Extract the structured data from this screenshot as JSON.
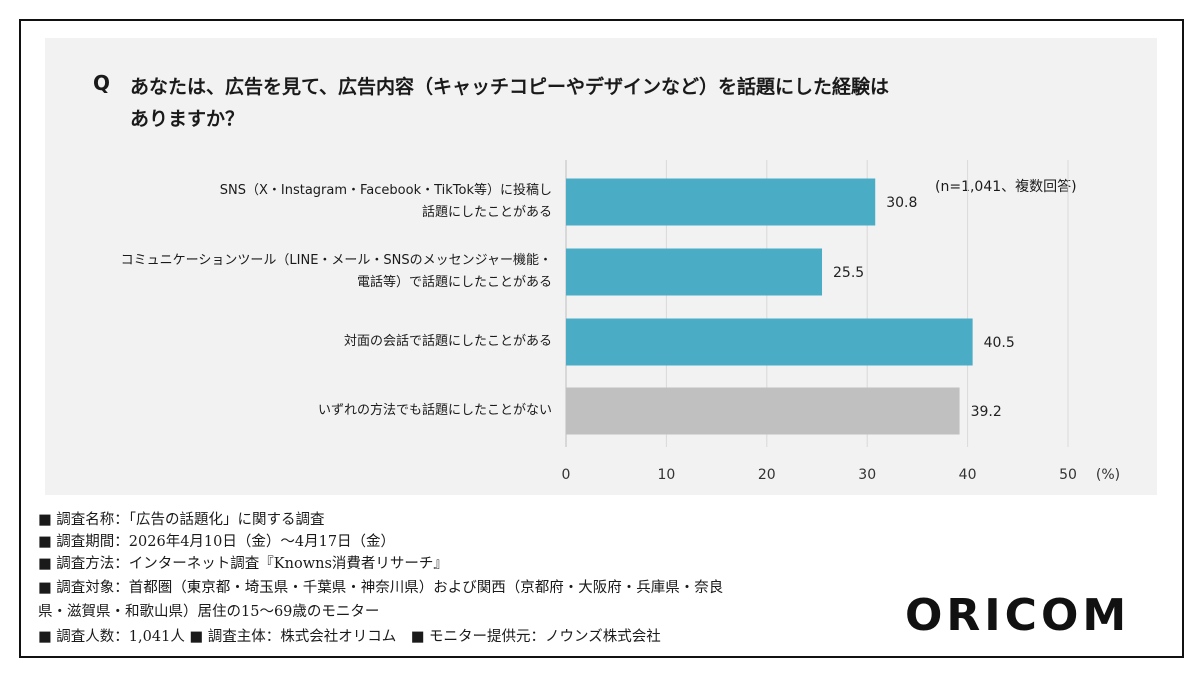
{
  "question": {
    "prefix": "Q",
    "text": "あなたは、広告を見て、広告内容（キャッチコピーやデザインなど）を話題にした経験は\nありますか？"
  },
  "note": "(n=1,041、複数回答)",
  "chart_data": {
    "type": "bar",
    "orientation": "horizontal",
    "categories": [
      "SNS（X・Instagram・Facebook・TikTok等）に投稿し\n話題にしたことがある",
      "コミュニケーションツール（LINE・メール・SNSのメッセンジャー機能・\n電話等）で話題にしたことがある",
      "対面の会話で話題にしたことがある",
      "いずれの方法でも話題にしたことがない"
    ],
    "values": [
      30.8,
      25.5,
      40.5,
      39.2
    ],
    "value_labels": [
      "30.8",
      "25.5",
      "40.5",
      "39.2"
    ],
    "bar_colors": [
      "#4bacc6",
      "#4bacc6",
      "#4bacc6",
      "#c0c0c0"
    ],
    "xlim": [
      0,
      50
    ],
    "x_ticks": [
      "0",
      "10",
      "20",
      "30",
      "40",
      "50"
    ],
    "x_unit": "(%)",
    "grid": true
  },
  "footer": {
    "line1": "■ 調査名称：「広告の話題化」に関する調査",
    "line2": "■ 調査期間：2026年4月10日（金）～4月17日（金）",
    "line3": "■ 調査方法：インターネット調査『Knowns消費者リサーチ』",
    "line4": "■ 調査対象：首都圏（東京都・埼玉県・千葉県・神奈川県）および関西（京都府・大阪府・兵庫県・奈良",
    "line5": "県・滋賀県・和歌山県）居住の15～69歳のモニター",
    "line6": "■ 調査人数：1,041人 ■ 調査主体：株式会社オリコム　■ モニター提供元：ノウンズ株式会社"
  },
  "logo": "ORICOM"
}
